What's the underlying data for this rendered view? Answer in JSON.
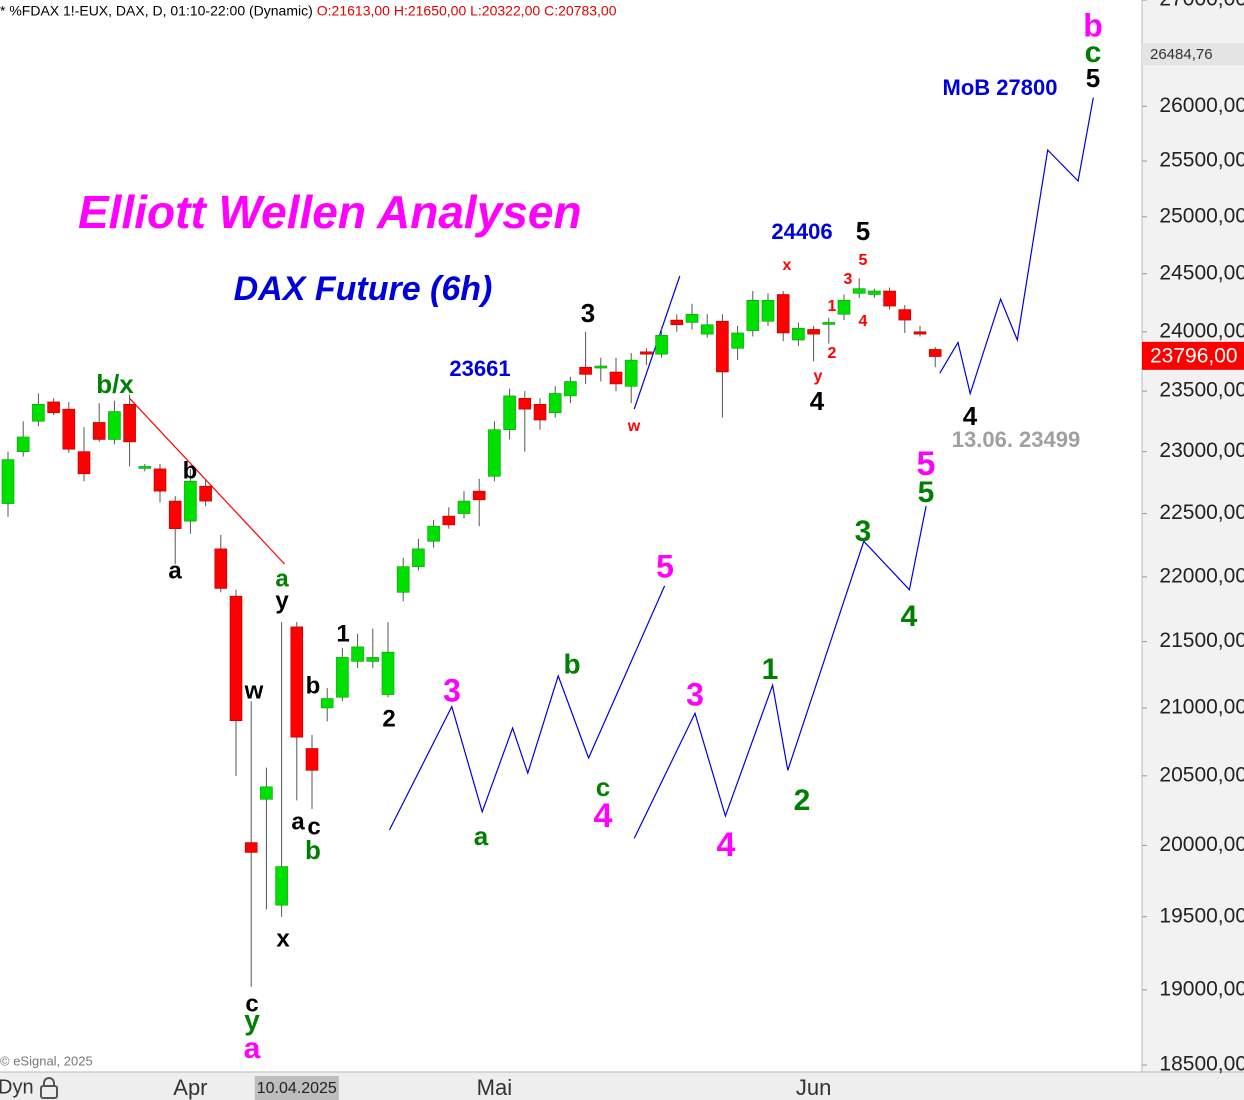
{
  "chart_data": {
    "type": "candlestick",
    "title": "Elliott Wellen Analysen",
    "subtitle": "DAX Future (6h)",
    "header": {
      "symbol": "* %FDAX 1!-EUX, DAX, D, 01:10-22:00 (Dynamic)",
      "ohlc": "O:21613,00 H:21650,00 L:20322,00 C:20783,00"
    },
    "copyright": "© eSignal, 2025",
    "footer_left": "Dyn",
    "log_scale": true,
    "grid": false,
    "up_color": "#00e000",
    "down_color": "#ff0000",
    "highlight_category": "10.04.2025",
    "categories": [
      null,
      null,
      null,
      null,
      null,
      null,
      null,
      null,
      null,
      null,
      null,
      null,
      "Apr",
      null,
      null,
      null,
      null,
      null,
      null,
      "10.04.2025",
      null,
      null,
      null,
      null,
      null,
      null,
      null,
      null,
      null,
      null,
      null,
      null,
      "Mai",
      null,
      null,
      null,
      null,
      null,
      null,
      null,
      null,
      null,
      null,
      null,
      null,
      null,
      null,
      null,
      null,
      null,
      null,
      null,
      null,
      "Jun",
      null,
      null,
      null,
      null,
      null,
      null,
      null,
      null
    ],
    "open": [
      22580,
      23000,
      23250,
      23410,
      23350,
      23000,
      23240,
      23100,
      23390,
      22870,
      22860,
      22600,
      22440,
      22720,
      22220,
      21850,
      20020,
      20330,
      19580,
      21613,
      20700,
      21000,
      21080,
      21350,
      21350,
      21100,
      21880,
      22080,
      22280,
      22480,
      22500,
      22680,
      22800,
      23180,
      23440,
      23390,
      23320,
      23460,
      23700,
      23700,
      23660,
      23540,
      23830,
      23810,
      24100,
      24080,
      23980,
      24090,
      23860,
      24010,
      24090,
      24320,
      23930,
      24020,
      24070,
      24150,
      24330,
      24320,
      24350,
      24190,
      24000,
      23850
    ],
    "high": [
      23000,
      23250,
      23480,
      23440,
      23410,
      23200,
      23400,
      23420,
      23470,
      22900,
      22900,
      22640,
      22860,
      22780,
      22330,
      21900,
      21050,
      20560,
      21650,
      21650,
      20800,
      21150,
      21450,
      21560,
      21600,
      21650,
      22150,
      22300,
      22450,
      22550,
      22680,
      22780,
      23250,
      23520,
      23500,
      23440,
      23540,
      23620,
      24000,
      23780,
      23780,
      23820,
      23860,
      24040,
      24150,
      24240,
      24150,
      24150,
      24050,
      24350,
      24330,
      24350,
      24080,
      24050,
      24120,
      24320,
      24460,
      24370,
      24380,
      24230,
      24050,
      23870
    ],
    "low": [
      22475,
      22960,
      23210,
      23300,
      22990,
      22760,
      23080,
      23060,
      22880,
      22840,
      22590,
      22100,
      22340,
      22560,
      21880,
      20500,
      19020,
      19550,
      19500,
      20322,
      20260,
      20900,
      21050,
      21300,
      21300,
      21080,
      21810,
      22050,
      22230,
      22380,
      22460,
      22400,
      22760,
      23100,
      23000,
      23180,
      23280,
      23400,
      23560,
      23580,
      23500,
      23400,
      23720,
      23780,
      24000,
      24020,
      23950,
      23280,
      23760,
      23960,
      24050,
      23920,
      23880,
      23750,
      23900,
      24100,
      24290,
      24290,
      24190,
      23990,
      23960,
      23700
    ],
    "close": [
      22935,
      23120,
      23390,
      23320,
      23020,
      22820,
      23100,
      23330,
      23080,
      22880,
      22680,
      22380,
      22760,
      22600,
      21910,
      20905,
      19950,
      20420,
      19850,
      20783,
      20540,
      21070,
      21380,
      21460,
      21380,
      21420,
      22080,
      22220,
      22400,
      22410,
      22600,
      22610,
      23180,
      23460,
      23350,
      23260,
      23480,
      23580,
      23640,
      23710,
      23560,
      23760,
      23810,
      23970,
      24060,
      24150,
      24060,
      23660,
      23990,
      24270,
      24270,
      23990,
      24030,
      23980,
      24080,
      24270,
      24370,
      24350,
      24220,
      24100,
      23980,
      23790
    ],
    "ylim": [
      18500,
      27000
    ],
    "yticks": [
      {
        "value": 18500,
        "label": "18500,00"
      },
      {
        "value": 19000,
        "label": "19000,00"
      },
      {
        "value": 19500,
        "label": "19500,00"
      },
      {
        "value": 20000,
        "label": "20000,00"
      },
      {
        "value": 20500,
        "label": "20500,00"
      },
      {
        "value": 21000,
        "label": "21000,00"
      },
      {
        "value": 21500,
        "label": "21500,00"
      },
      {
        "value": 22000,
        "label": "22000,00"
      },
      {
        "value": 22500,
        "label": "22500,00"
      },
      {
        "value": 23000,
        "label": "23000,00"
      },
      {
        "value": 23500,
        "label": "23500,00"
      },
      {
        "value": 24000,
        "label": "24000,00"
      },
      {
        "value": 24500,
        "label": "24500,00"
      },
      {
        "value": 25000,
        "label": "25000,00"
      },
      {
        "value": 25500,
        "label": "25500,00"
      },
      {
        "value": 26000,
        "label": "26000,00"
      },
      {
        "value": 27000,
        "label": "27000,00"
      }
    ],
    "price_markers": [
      {
        "value": 26484.76,
        "label": "26484,76",
        "background": "#e4e4e4",
        "text_color": "#333333"
      },
      {
        "value": 23796,
        "label": "23796,00",
        "background": "#ff0000",
        "text_color": "#ffffff"
      }
    ],
    "lines": [
      {
        "color": "#0000dd",
        "x": [
          25.1,
          29.2,
          31.2,
          33.2,
          34.2,
          36.2,
          38.2,
          43.2
        ],
        "values": [
          20110,
          21010,
          20240,
          20850,
          20520,
          21240,
          20630,
          21930
        ]
      },
      {
        "color": "#0000dd",
        "x": [
          41.2,
          45.2,
          47.2,
          50.3,
          51.3,
          56.3,
          59.3,
          60.4
        ],
        "values": [
          20050,
          20960,
          20210,
          21170,
          20540,
          22280,
          21900,
          22560
        ]
      },
      {
        "color": "#0000dd",
        "x": [
          41.2,
          44.2
        ],
        "values": [
          23350,
          24480
        ]
      },
      {
        "color": "#0000dd",
        "x": [
          61.3,
          62.5,
          63.3,
          65.3,
          66.4,
          68.4,
          70.4,
          71.4
        ],
        "values": [
          23650,
          23910,
          23480,
          24280,
          23930,
          25600,
          25320,
          26080
        ]
      },
      {
        "color": "#ff0000",
        "x": [
          8.0,
          18.2
        ],
        "values": [
          23440,
          22100
        ]
      }
    ],
    "annotations": [
      {
        "text": "b/x",
        "color": "#008000"
      },
      {
        "text": "b",
        "color": "#000000"
      },
      {
        "text": "a",
        "color": "#000000"
      },
      {
        "text": "a",
        "color": "#008000"
      },
      {
        "text": "y",
        "color": "#000000"
      },
      {
        "text": "w",
        "color": "#000000"
      },
      {
        "text": "b",
        "color": "#000000"
      },
      {
        "text": "1",
        "color": "#000000"
      },
      {
        "text": "2",
        "color": "#000000"
      },
      {
        "text": "a",
        "color": "#000000"
      },
      {
        "text": "c",
        "color": "#000000"
      },
      {
        "text": "b",
        "color": "#008000"
      },
      {
        "text": "x",
        "color": "#000000"
      },
      {
        "text": "c",
        "color": "#000000"
      },
      {
        "text": "y",
        "color": "#008000"
      },
      {
        "text": "a",
        "color": "#ff00ff"
      },
      {
        "text": "3",
        "color": "#ff00ff"
      },
      {
        "text": "a",
        "color": "#008000"
      },
      {
        "text": "b",
        "color": "#008000"
      },
      {
        "text": "5",
        "color": "#ff00ff"
      },
      {
        "text": "c",
        "color": "#008000"
      },
      {
        "text": "4",
        "color": "#ff00ff"
      },
      {
        "text": "3",
        "color": "#ff00ff"
      },
      {
        "text": "4",
        "color": "#ff00ff"
      },
      {
        "text": "1",
        "color": "#008000"
      },
      {
        "text": "2",
        "color": "#008000"
      },
      {
        "text": "3",
        "color": "#008000"
      },
      {
        "text": "4",
        "color": "#008000"
      },
      {
        "text": "5",
        "color": "#008000"
      },
      {
        "text": "5",
        "color": "#ff00ff"
      },
      {
        "text": "23661",
        "color": "#0000dd"
      },
      {
        "text": "3",
        "color": "#000000"
      },
      {
        "text": "w",
        "color": "#ff0000"
      },
      {
        "text": "24406",
        "color": "#0000dd"
      },
      {
        "text": "5",
        "color": "#000000"
      },
      {
        "text": "x",
        "color": "#ff0000"
      },
      {
        "text": "5",
        "color": "#ff0000"
      },
      {
        "text": "3",
        "color": "#ff0000"
      },
      {
        "text": "1",
        "color": "#ff0000"
      },
      {
        "text": "4",
        "color": "#ff0000"
      },
      {
        "text": "2",
        "color": "#ff0000"
      },
      {
        "text": "y",
        "color": "#ff0000"
      },
      {
        "text": "4",
        "color": "#000000"
      },
      {
        "text": "4",
        "color": "#000000"
      },
      {
        "text": "13.06. 23499",
        "color": "#a0a0a0"
      },
      {
        "text": "MoB 27800",
        "color": "#0000dd"
      },
      {
        "text": "b",
        "color": "#ff00ff"
      },
      {
        "text": "c",
        "color": "#008000"
      },
      {
        "text": "5",
        "color": "#000000"
      }
    ]
  }
}
